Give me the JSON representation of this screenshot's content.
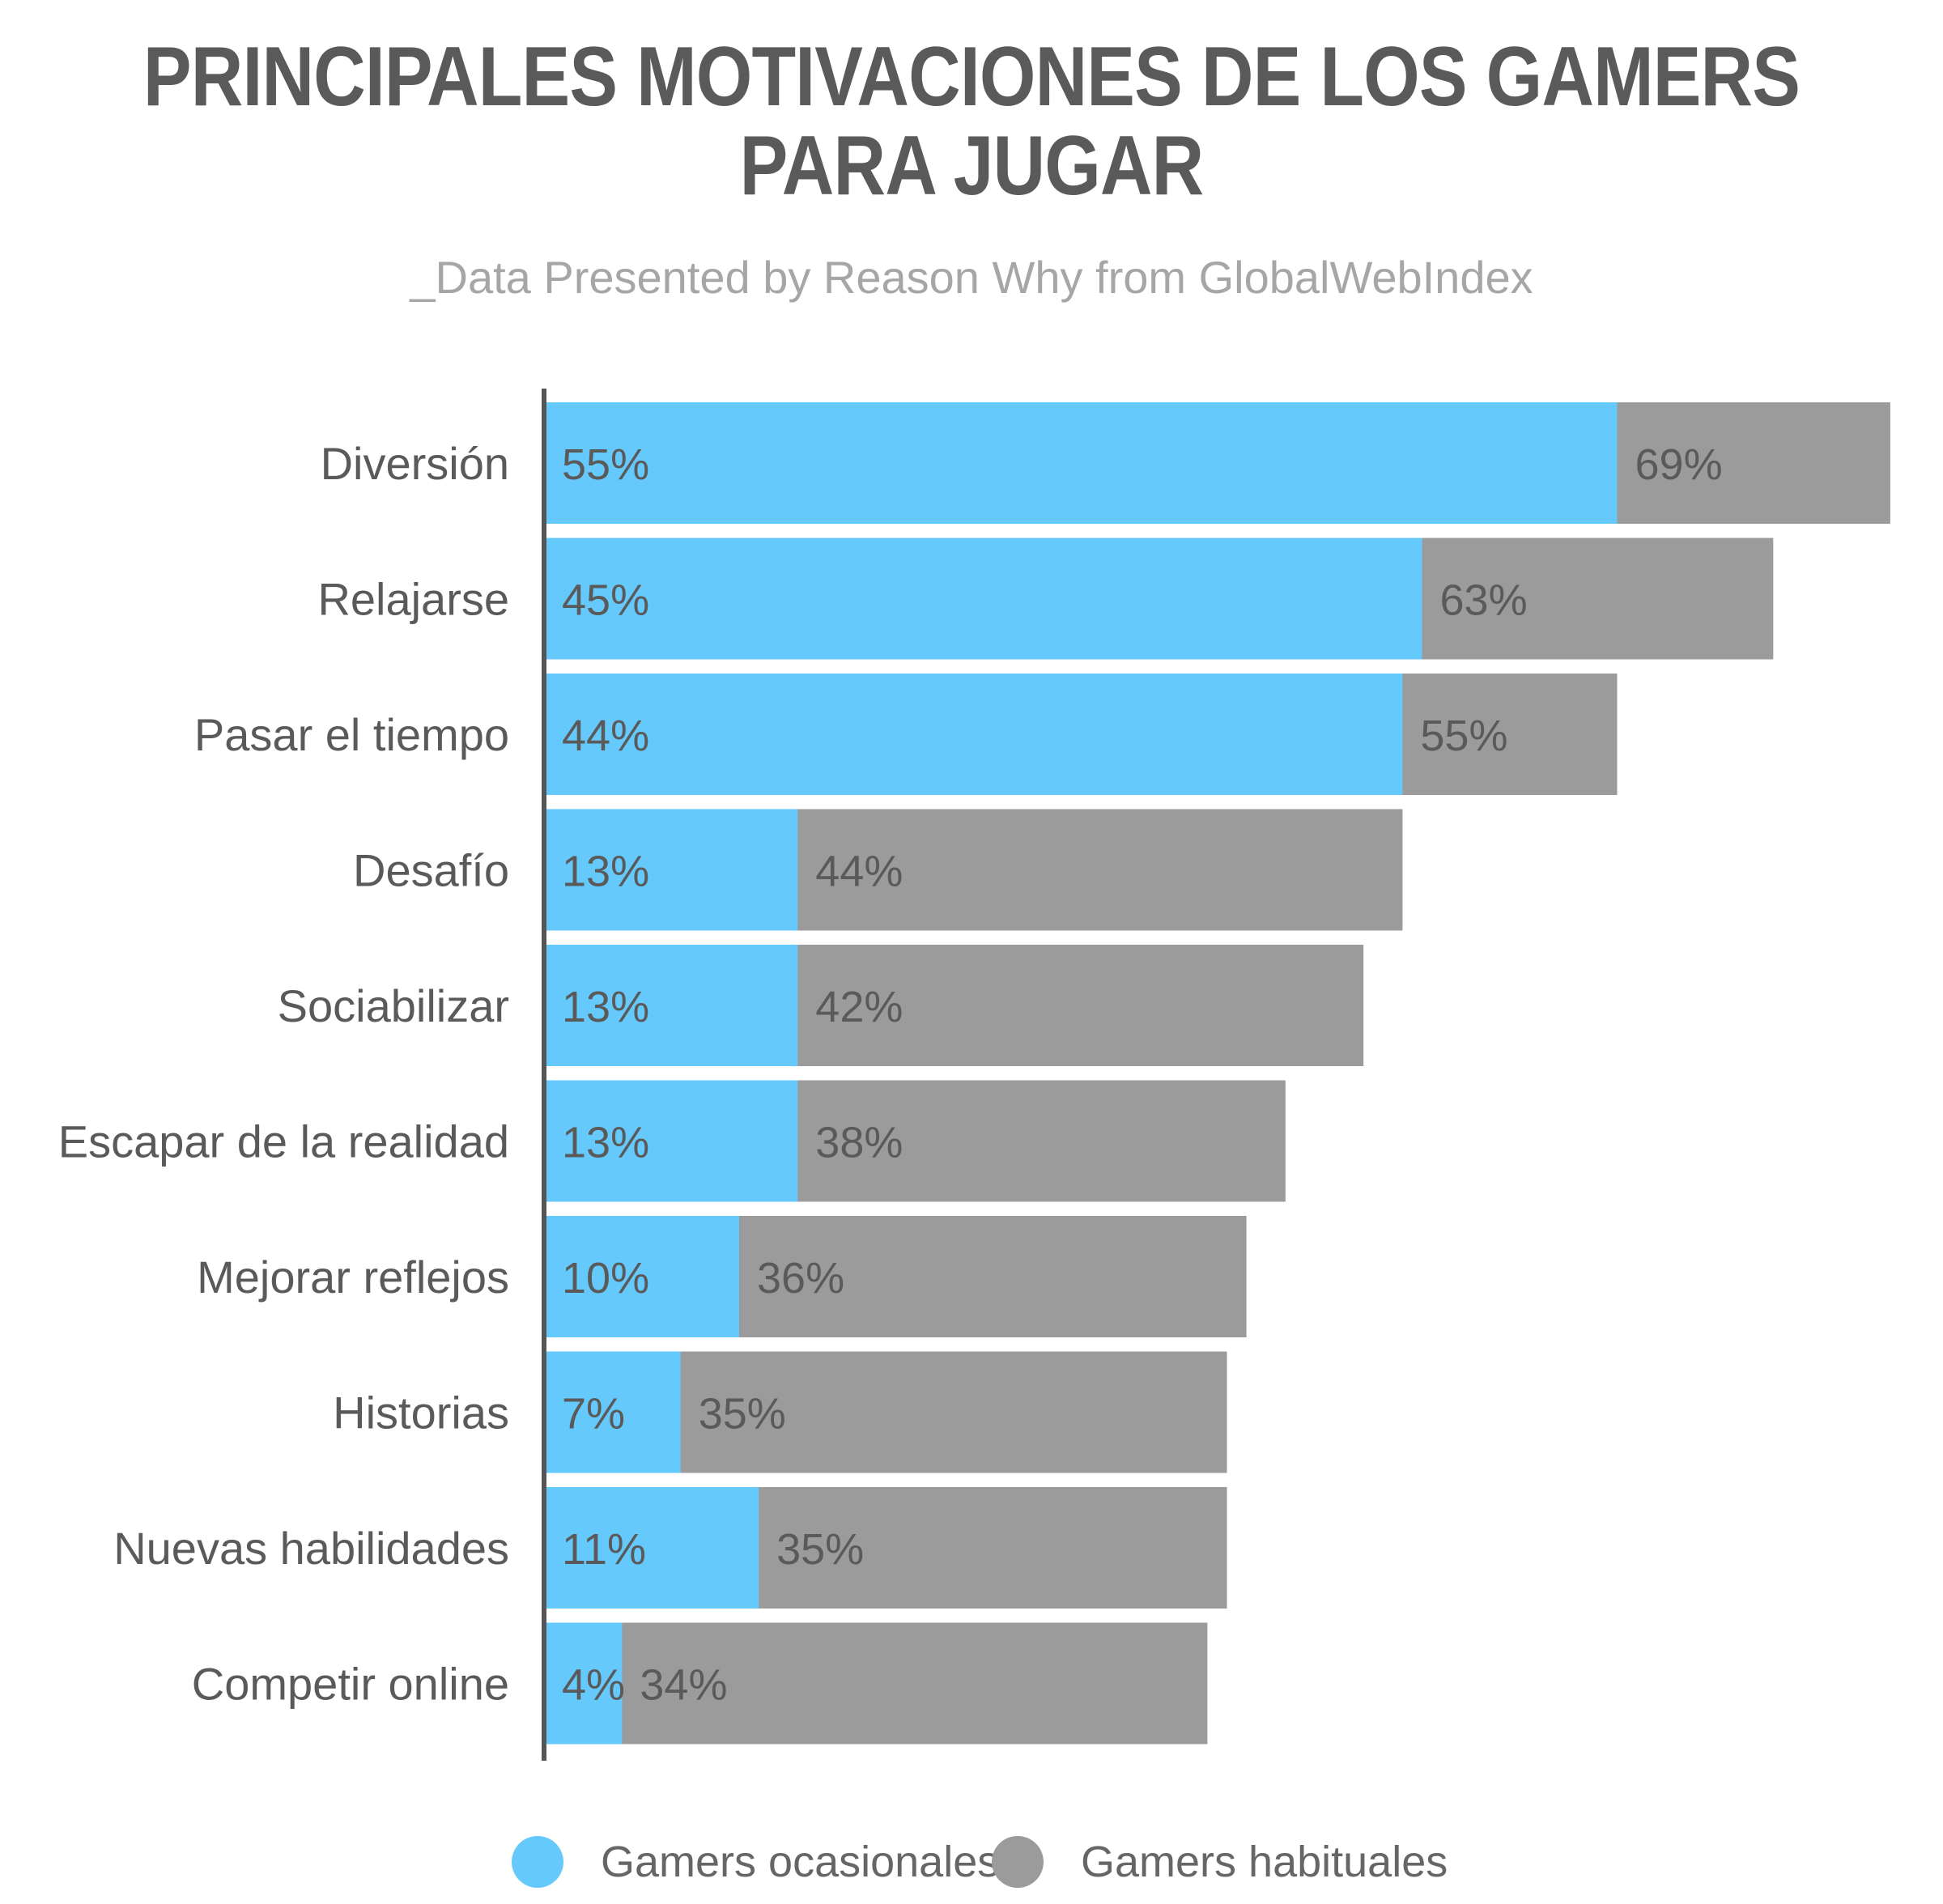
{
  "header": {
    "title_line1": "PRINCIPALES MOTIVACIONES DE LOS GAMERS",
    "title_line2": "PARA JUGAR",
    "subtitle": "_Data Presented by Reason Why from GlobalWebIndex"
  },
  "colors": {
    "ocasionales": "#66c9fc",
    "habituales": "#9b9b9b",
    "axis": "#555555",
    "category_text": "#5a5a5a",
    "value_text": "#5a5a5a"
  },
  "chart_data": {
    "type": "bar",
    "orientation": "horizontal",
    "stacked": false,
    "title": "PRINCIPALES MOTIVACIONES DE LOS GAMERS PARA JUGAR",
    "subtitle": "_Data Presented by Reason Why from GlobalWebIndex",
    "categories": [
      "Diversión",
      "Relajarse",
      "Pasar el tiempo",
      "Desafío",
      "Sociabilizar",
      "Escapar de la realidad",
      "Mejorar reflejos",
      "Historias",
      "Nuevas habilidades",
      "Competir online"
    ],
    "series": [
      {
        "name": "Gamers ocasionales",
        "values": [
          55,
          45,
          44,
          13,
          13,
          13,
          10,
          7,
          11,
          4
        ],
        "labels": [
          "55%",
          "45%",
          "44%",
          "13%",
          "13%",
          "13%",
          "10%",
          "7%",
          "11%",
          "4%"
        ]
      },
      {
        "name": "Gamers habituales",
        "values": [
          69,
          63,
          55,
          44,
          42,
          38,
          36,
          35,
          35,
          34
        ],
        "labels": [
          "69%",
          "63%",
          "55%",
          "44%",
          "42%",
          "38%",
          "36%",
          "35%",
          "35%",
          "34%"
        ]
      }
    ],
    "xlim": [
      0,
      69
    ],
    "grid": false,
    "legend_position": "bottom"
  }
}
